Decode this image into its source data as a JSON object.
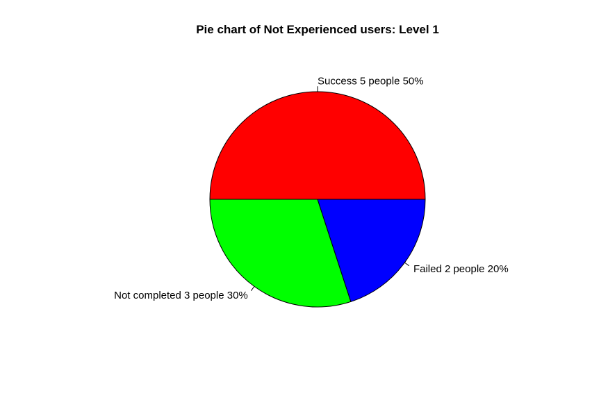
{
  "chart_data": {
    "type": "pie",
    "title": "Pie chart of Not Experienced users: Level 1",
    "start_angle_deg": 0,
    "direction": "counterclockwise",
    "slices": [
      {
        "label": "Success 5 people 50%",
        "category": "Success",
        "value": 5,
        "percent": 50,
        "color": "#ff0000"
      },
      {
        "label": "Not completed 3 people 30%",
        "category": "Not completed",
        "value": 3,
        "percent": 30,
        "color": "#00ff00"
      },
      {
        "label": "Failed 2 people 20%",
        "category": "Failed",
        "value": 2,
        "percent": 20,
        "color": "#0000ff"
      }
    ],
    "legend": "none"
  }
}
